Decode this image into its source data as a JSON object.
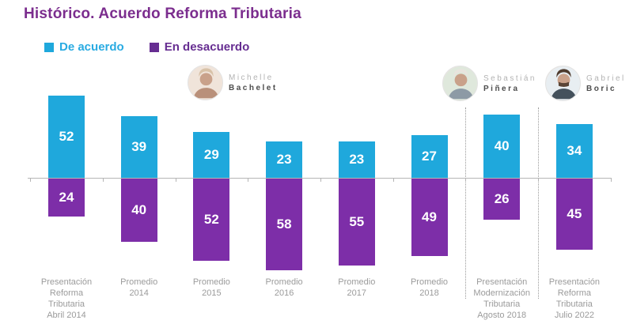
{
  "page": {
    "title": "Histórico. Acuerdo Reforma Tributaria"
  },
  "legend": [
    {
      "label": "De acuerdo",
      "color": "#1fa8dc"
    },
    {
      "label": "En desacuerdo",
      "color": "#662d91"
    }
  ],
  "presidents": [
    {
      "first": "Michelle",
      "last": "Bachelet"
    },
    {
      "first": "Sebastián",
      "last": "Piñera"
    },
    {
      "first": "Gabriel",
      "last": "Boric"
    }
  ],
  "chart_data": {
    "type": "bar",
    "subtype": "diverging-stacked",
    "title": "Histórico. Acuerdo Reforma Tributaria",
    "orientation": "De acuerdo above baseline, En desacuerdo below baseline",
    "legend_position": "top-left",
    "grid": false,
    "unit": "percent",
    "categories": [
      "Presentación\nReforma\nTributaria\nAbril 2014",
      "Promedio\n2014",
      "Promedio\n2015",
      "Promedio\n2016",
      "Promedio\n2017",
      "Promedio\n2018",
      "Presentación\nModernización\nTributaria\nAgosto 2018",
      "Presentación\nReforma\nTributaria\nJulio 2022"
    ],
    "series": [
      {
        "name": "De acuerdo",
        "color": "#1fa8dc",
        "values": [
          52,
          39,
          29,
          23,
          23,
          27,
          40,
          34
        ]
      },
      {
        "name": "En desacuerdo",
        "color": "#7d2ea8",
        "values": [
          24,
          40,
          52,
          58,
          55,
          49,
          26,
          45
        ]
      }
    ],
    "separator_after_indices": [
      5,
      6
    ]
  }
}
